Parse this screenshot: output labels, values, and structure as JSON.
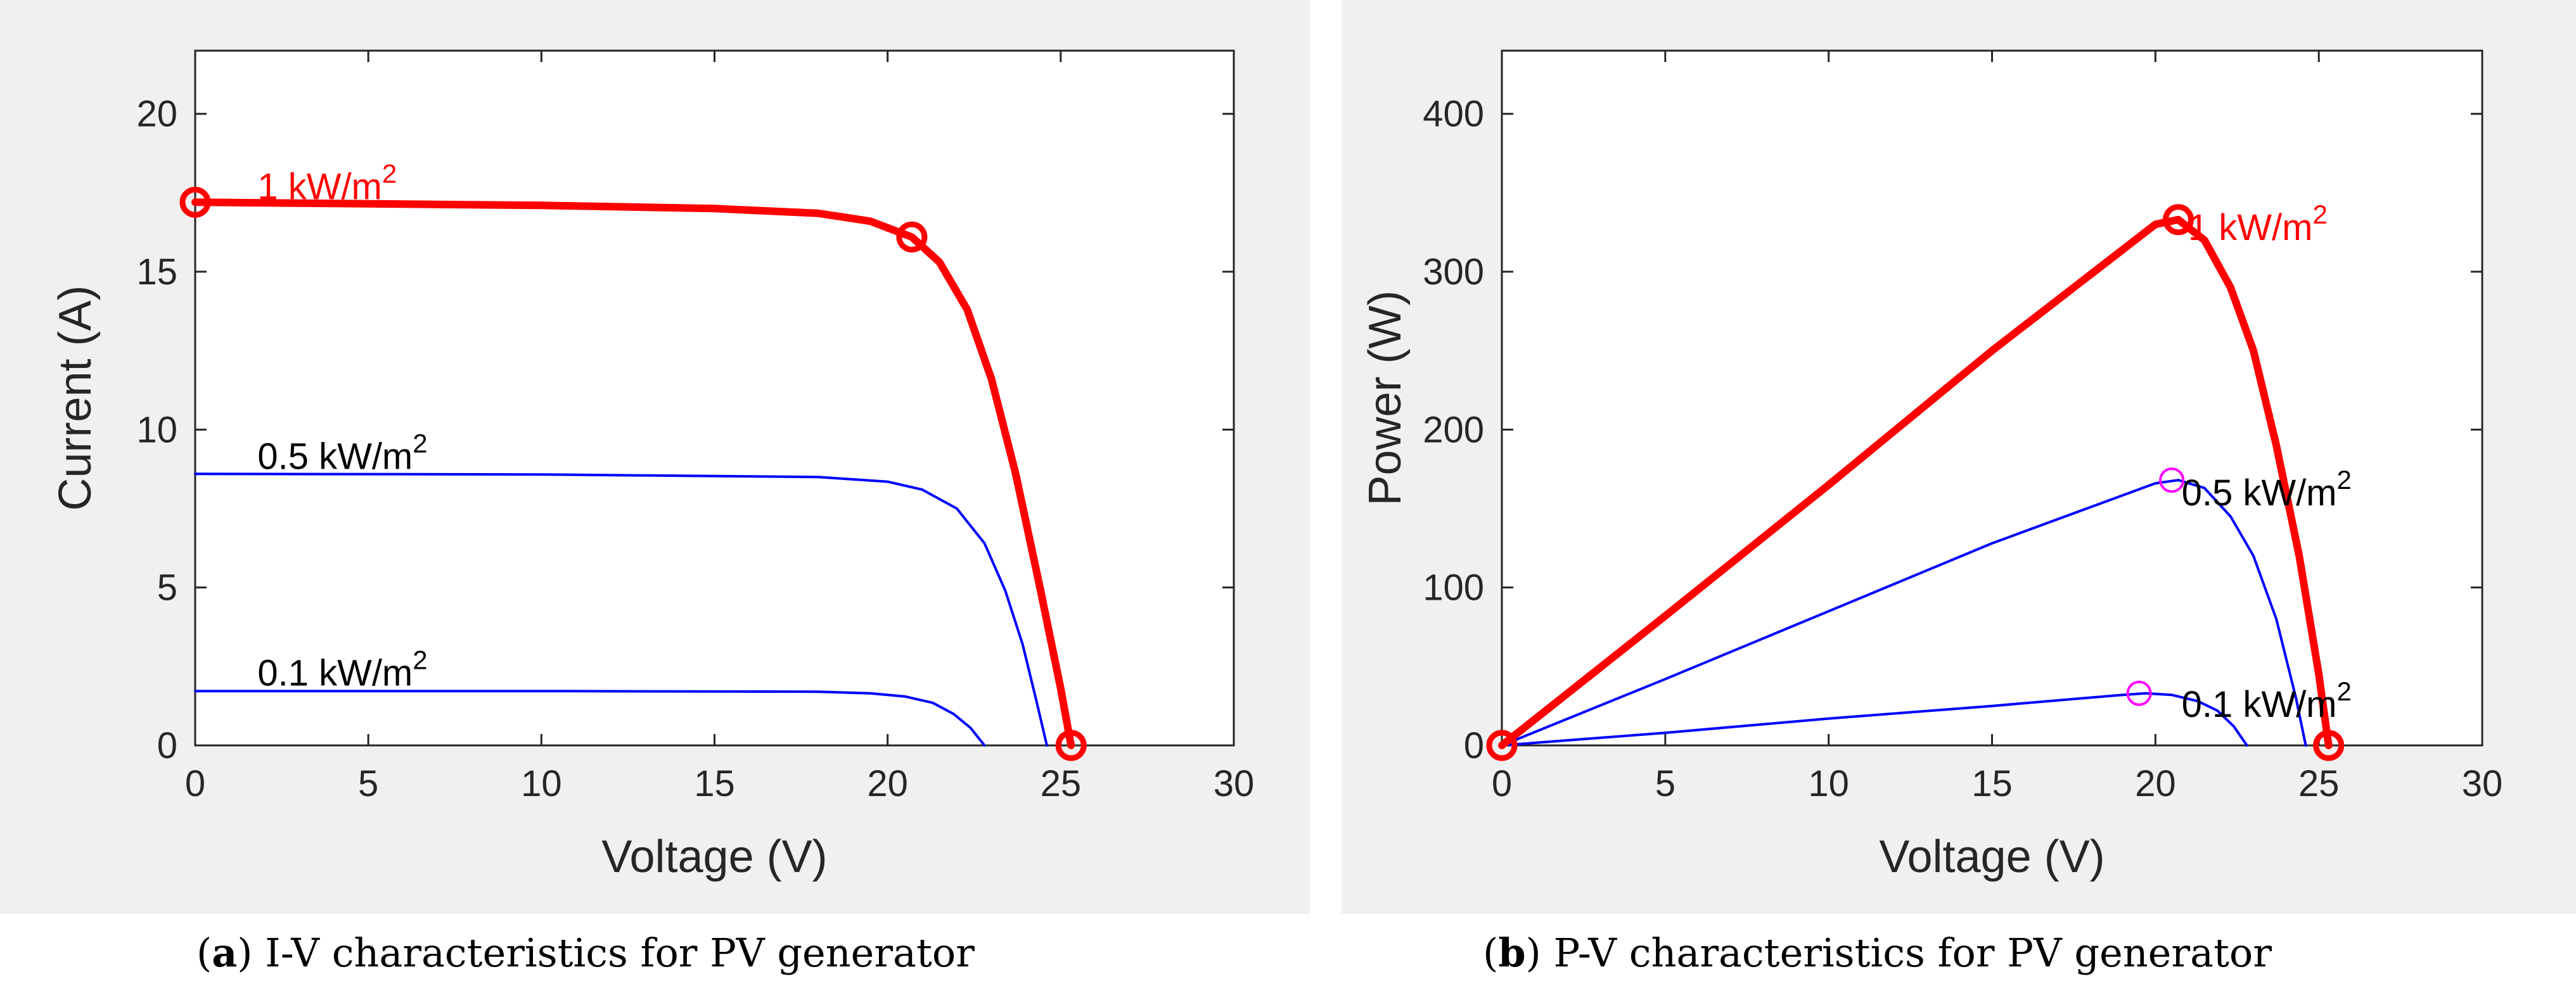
{
  "colors": {
    "red": "#ff0000",
    "blue": "#0000ff",
    "magenta": "#ff00ff",
    "axis": "#262626",
    "label_black": "#000000",
    "panel_bg": "#f0f0f0"
  },
  "captions": [
    {
      "tag": "a",
      "text": "I-V characteristics for PV generator"
    },
    {
      "tag": "b",
      "text": "P-V characteristics for PV generator"
    }
  ],
  "chart_data": [
    {
      "type": "line",
      "title": "",
      "xlabel": "Voltage (V)",
      "ylabel": "Current (A)",
      "xlim": [
        0,
        30
      ],
      "ylim": [
        0,
        22
      ],
      "xticks": [
        0,
        5,
        10,
        15,
        20,
        25,
        30
      ],
      "yticks": [
        0,
        5,
        10,
        15,
        20
      ],
      "grid": false,
      "series": [
        {
          "name": "1 kW/m2",
          "label_text": "1 kW/m",
          "label_sup": "2",
          "color": "red",
          "thick": true,
          "x": [
            0,
            5,
            10,
            15,
            18,
            19.5,
            20.7,
            21.5,
            22.3,
            23,
            23.7,
            24.4,
            25,
            25.3
          ],
          "y": [
            17.2,
            17.15,
            17.1,
            17.0,
            16.85,
            16.6,
            16.1,
            15.3,
            13.8,
            11.6,
            8.6,
            5.0,
            1.8,
            0
          ],
          "markers": [
            {
              "x": 0,
              "y": 17.2
            },
            {
              "x": 20.7,
              "y": 16.1
            },
            {
              "x": 25.3,
              "y": 0
            }
          ]
        },
        {
          "name": "0.5 kW/m2",
          "label_text": "0.5 kW/m",
          "label_sup": "2",
          "color": "blue",
          "thick": false,
          "x": [
            0,
            10,
            18,
            20,
            21,
            22,
            22.8,
            23.4,
            23.9,
            24.3,
            24.6
          ],
          "y": [
            8.6,
            8.58,
            8.5,
            8.35,
            8.1,
            7.5,
            6.4,
            4.9,
            3.2,
            1.4,
            0
          ]
        },
        {
          "name": "0.1 kW/m2",
          "label_text": "0.1 kW/m",
          "label_sup": "2",
          "color": "blue",
          "thick": false,
          "x": [
            0,
            10,
            18,
            19.5,
            20.5,
            21.3,
            21.9,
            22.4,
            22.8
          ],
          "y": [
            1.72,
            1.72,
            1.7,
            1.65,
            1.55,
            1.35,
            1.0,
            0.55,
            0
          ]
        }
      ],
      "labels": [
        {
          "series": "1 kW/m2",
          "x": 1.8,
          "y": 17.3,
          "color": "red"
        },
        {
          "series": "0.5 kW/m2",
          "x": 1.8,
          "y": 8.75,
          "color": "label_black"
        },
        {
          "series": "0.1 kW/m2",
          "x": 1.8,
          "y": 1.9,
          "color": "label_black"
        }
      ]
    },
    {
      "type": "line",
      "title": "",
      "xlabel": "Voltage (V)",
      "ylabel": "Power (W)",
      "xlim": [
        0,
        30
      ],
      "ylim": [
        0,
        440
      ],
      "xticks": [
        0,
        5,
        10,
        15,
        20,
        25,
        30
      ],
      "yticks": [
        0,
        100,
        200,
        300,
        400
      ],
      "grid": false,
      "series": [
        {
          "name": "1 kW/m2",
          "label_text": "1 kW/m",
          "label_sup": "2",
          "color": "red",
          "thick": true,
          "x": [
            0,
            5,
            10,
            15,
            20,
            20.7,
            21.5,
            22.3,
            23,
            23.7,
            24.4,
            25,
            25.3
          ],
          "y": [
            0,
            82,
            165,
            250,
            330,
            333,
            320,
            290,
            250,
            190,
            120,
            45,
            0
          ],
          "markers": [
            {
              "x": 0,
              "y": 0
            },
            {
              "x": 20.7,
              "y": 333
            },
            {
              "x": 25.3,
              "y": 0
            }
          ]
        },
        {
          "name": "0.5 kW/m2",
          "label_text": "0.5 kW/m",
          "label_sup": "2",
          "color": "blue",
          "thick": false,
          "x": [
            0,
            5,
            10,
            15,
            20,
            20.7,
            21.5,
            22.3,
            23,
            23.7,
            24.3,
            24.6
          ],
          "y": [
            0,
            42,
            85,
            128,
            166,
            168,
            163,
            145,
            120,
            80,
            30,
            0
          ],
          "markers": [
            {
              "x": 20.5,
              "y": 168
            }
          ]
        },
        {
          "name": "0.1 kW/m2",
          "label_text": "0.1 kW/m",
          "label_sup": "2",
          "color": "blue",
          "thick": false,
          "x": [
            0,
            5,
            10,
            15,
            19,
            19.7,
            20.5,
            21.3,
            21.9,
            22.4,
            22.8
          ],
          "y": [
            0,
            8,
            17,
            25,
            32,
            33,
            32,
            28,
            22,
            12,
            0
          ],
          "markers": [
            {
              "x": 19.5,
              "y": 33
            }
          ]
        }
      ],
      "labels": [
        {
          "series": "1 kW/m2",
          "x": 21.0,
          "y": 320,
          "color": "red"
        },
        {
          "series": "0.5 kW/m2",
          "x": 20.8,
          "y": 152,
          "color": "label_black"
        },
        {
          "series": "0.1 kW/m2",
          "x": 20.8,
          "y": 18,
          "color": "label_black"
        }
      ]
    }
  ]
}
